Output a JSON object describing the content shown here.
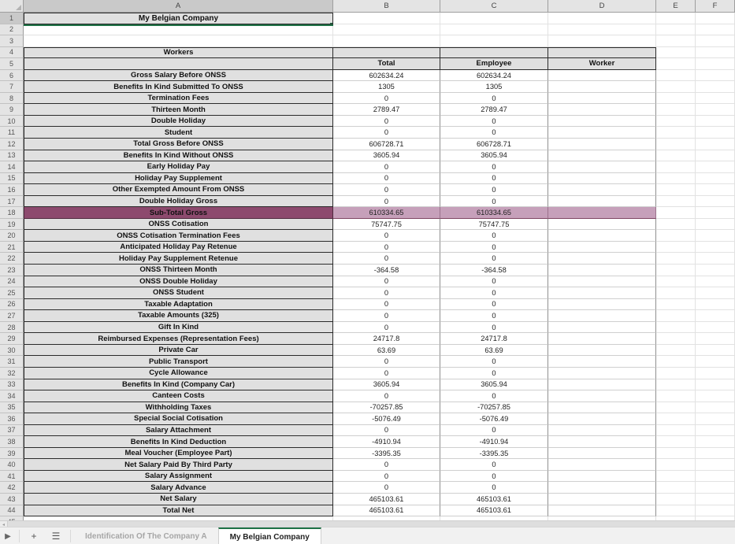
{
  "colors": {
    "selection_green": "#1e7145",
    "highlight_label_bg": "#8d4a6e",
    "highlight_value_bg": "#c6a0ba",
    "header_bg": "#e4e4e4",
    "label_cell_bg": "#e0e0e0"
  },
  "column_headers": [
    "A",
    "B",
    "C",
    "D",
    "E",
    "F"
  ],
  "row_count_visible": 45,
  "title_cell": "My Belgian Company",
  "section_header": "Workers",
  "table": {
    "col_headers": [
      "Total",
      "Employee",
      "Worker"
    ],
    "rows": [
      {
        "label": "Gross Salary Before ONSS",
        "total": "602634.24",
        "employee": "602634.24",
        "worker": "",
        "highlight": false
      },
      {
        "label": "Benefits In Kind Submitted To ONSS",
        "total": "1305",
        "employee": "1305",
        "worker": "",
        "highlight": false
      },
      {
        "label": "Termination Fees",
        "total": "0",
        "employee": "0",
        "worker": "",
        "highlight": false
      },
      {
        "label": "Thirteen Month",
        "total": "2789.47",
        "employee": "2789.47",
        "worker": "",
        "highlight": false
      },
      {
        "label": "Double Holiday",
        "total": "0",
        "employee": "0",
        "worker": "",
        "highlight": false
      },
      {
        "label": "Student",
        "total": "0",
        "employee": "0",
        "worker": "",
        "highlight": false
      },
      {
        "label": "Total Gross Before ONSS",
        "total": "606728.71",
        "employee": "606728.71",
        "worker": "",
        "highlight": false
      },
      {
        "label": "Benefits In Kind Without ONSS",
        "total": "3605.94",
        "employee": "3605.94",
        "worker": "",
        "highlight": false
      },
      {
        "label": "Early Holiday Pay",
        "total": "0",
        "employee": "0",
        "worker": "",
        "highlight": false
      },
      {
        "label": "Holiday Pay Supplement",
        "total": "0",
        "employee": "0",
        "worker": "",
        "highlight": false
      },
      {
        "label": "Other Exempted Amount From ONSS",
        "total": "0",
        "employee": "0",
        "worker": "",
        "highlight": false
      },
      {
        "label": "Double Holiday Gross",
        "total": "0",
        "employee": "0",
        "worker": "",
        "highlight": false
      },
      {
        "label": "Sub-Total Gross",
        "total": "610334.65",
        "employee": "610334.65",
        "worker": "",
        "highlight": true
      },
      {
        "label": "ONSS Cotisation",
        "total": "75747.75",
        "employee": "75747.75",
        "worker": "",
        "highlight": false
      },
      {
        "label": "ONSS Cotisation Termination Fees",
        "total": "0",
        "employee": "0",
        "worker": "",
        "highlight": false
      },
      {
        "label": "Anticipated Holiday Pay Retenue",
        "total": "0",
        "employee": "0",
        "worker": "",
        "highlight": false
      },
      {
        "label": "Holiday Pay Supplement Retenue",
        "total": "0",
        "employee": "0",
        "worker": "",
        "highlight": false
      },
      {
        "label": "ONSS Thirteen Month",
        "total": "-364.58",
        "employee": "-364.58",
        "worker": "",
        "highlight": false
      },
      {
        "label": "ONSS Double Holiday",
        "total": "0",
        "employee": "0",
        "worker": "",
        "highlight": false
      },
      {
        "label": "ONSS Student",
        "total": "0",
        "employee": "0",
        "worker": "",
        "highlight": false
      },
      {
        "label": "Taxable Adaptation",
        "total": "0",
        "employee": "0",
        "worker": "",
        "highlight": false
      },
      {
        "label": "Taxable Amounts (325)",
        "total": "0",
        "employee": "0",
        "worker": "",
        "highlight": false
      },
      {
        "label": "Gift In Kind",
        "total": "0",
        "employee": "0",
        "worker": "",
        "highlight": false
      },
      {
        "label": "Reimbursed Expenses (Representation Fees)",
        "total": "24717.8",
        "employee": "24717.8",
        "worker": "",
        "highlight": false
      },
      {
        "label": "Private Car",
        "total": "63.69",
        "employee": "63.69",
        "worker": "",
        "highlight": false
      },
      {
        "label": "Public Transport",
        "total": "0",
        "employee": "0",
        "worker": "",
        "highlight": false
      },
      {
        "label": "Cycle Allowance",
        "total": "0",
        "employee": "0",
        "worker": "",
        "highlight": false
      },
      {
        "label": "Benefits In Kind (Company Car)",
        "total": "3605.94",
        "employee": "3605.94",
        "worker": "",
        "highlight": false
      },
      {
        "label": "Canteen Costs",
        "total": "0",
        "employee": "0",
        "worker": "",
        "highlight": false
      },
      {
        "label": "Withholding Taxes",
        "total": "-70257.85",
        "employee": "-70257.85",
        "worker": "",
        "highlight": false
      },
      {
        "label": "Special Social Cotisation",
        "total": "-5076.49",
        "employee": "-5076.49",
        "worker": "",
        "highlight": false
      },
      {
        "label": "Salary Attachment",
        "total": "0",
        "employee": "0",
        "worker": "",
        "highlight": false
      },
      {
        "label": "Benefits In Kind Deduction",
        "total": "-4910.94",
        "employee": "-4910.94",
        "worker": "",
        "highlight": false
      },
      {
        "label": "Meal Voucher (Employee Part)",
        "total": "-3395.35",
        "employee": "-3395.35",
        "worker": "",
        "highlight": false
      },
      {
        "label": "Net Salary Paid By Third Party",
        "total": "0",
        "employee": "0",
        "worker": "",
        "highlight": false
      },
      {
        "label": "Salary Assignment",
        "total": "0",
        "employee": "0",
        "worker": "",
        "highlight": false
      },
      {
        "label": "Salary Advance",
        "total": "0",
        "employee": "0",
        "worker": "",
        "highlight": false
      },
      {
        "label": "Net Salary",
        "total": "465103.61",
        "employee": "465103.61",
        "worker": "",
        "highlight": false
      },
      {
        "label": "Total Net",
        "total": "465103.61",
        "employee": "465103.61",
        "worker": "",
        "highlight": false
      }
    ]
  },
  "tab_bar": {
    "play_icon": "▶",
    "add_sheet_icon": "+",
    "sheet_menu_icon": "☰",
    "scroll_left_icon": "◂",
    "sheet_tabs": [
      {
        "label": "Identification Of The Company A",
        "active": false
      },
      {
        "label": "My Belgian Company",
        "active": true
      }
    ]
  }
}
